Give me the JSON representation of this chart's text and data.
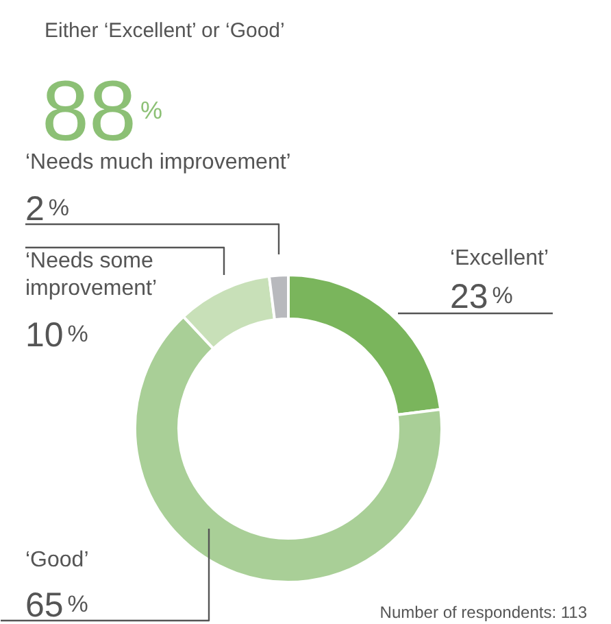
{
  "chart_data": {
    "type": "donut",
    "title": "Either ‘Excellent’ or ‘Good’",
    "subtitle": "88%",
    "categories": [
      "‘Excellent’",
      "‘Good’",
      "‘Needs some improvement’",
      "‘Needs much improvement’"
    ],
    "values": [
      23,
      65,
      10,
      2
    ],
    "colors": [
      "#7ab55c",
      "#a9cf97",
      "#c8e0b8",
      "#b8b9bd"
    ],
    "value_labels": [
      "23%",
      "65%",
      "10%",
      "2%"
    ],
    "annotations": [
      "Number of respondents: 113"
    ]
  }
}
